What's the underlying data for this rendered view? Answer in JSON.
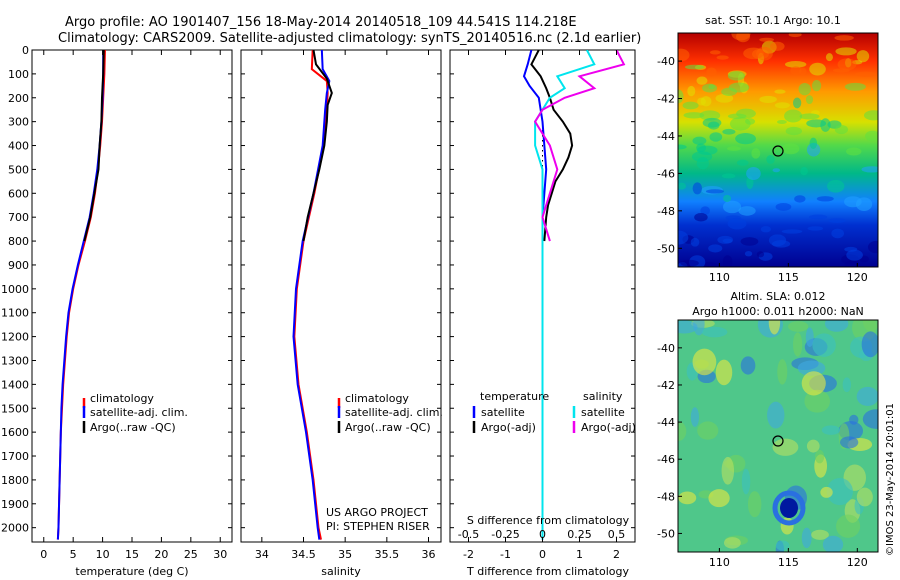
{
  "title": {
    "line1": "Argo profile: AO 1901407_156 18-May-2014 20140518_109 44.541S 114.218E",
    "line2": "Climatology: CARS2009. Satellite-adjusted climatology: synTS_20140516.nc (2.1d earlier)"
  },
  "vertical_stamp": "©IMOS 23-May-2014 20:01:01",
  "colors": {
    "climatology": "#ff0000",
    "satellite": "#0000ff",
    "argo": "#000000",
    "sal_satellite": "#00e5ee",
    "sal_argo": "#ee00ee"
  },
  "chart_data": [
    {
      "type": "line",
      "xlabel": "temperature (deg C)",
      "ylabel": "",
      "xlim": [
        -2,
        32
      ],
      "ylim": [
        2060,
        0
      ],
      "x_ticks": [
        "0",
        "5",
        "10",
        "15",
        "20",
        "25",
        "30"
      ],
      "y_ticks": [
        "0",
        "100",
        "200",
        "300",
        "400",
        "500",
        "600",
        "700",
        "800",
        "900",
        "1000",
        "1100",
        "1200",
        "1300",
        "1400",
        "1500",
        "1600",
        "1700",
        "1800",
        "1900",
        "2000"
      ],
      "legend": [
        "climatology",
        "satellite-adj. clim.",
        "Argo(..raw -QC)"
      ],
      "series": [
        {
          "name": "climatology",
          "depth": [
            0,
            100,
            200,
            300,
            400,
            500,
            600,
            700,
            800,
            900,
            1000,
            1100,
            1200,
            1300,
            1400,
            1500,
            1600,
            1700,
            1800,
            1900,
            2000,
            2050
          ],
          "values": [
            10.4,
            10.3,
            10.1,
            9.9,
            9.6,
            9.2,
            8.7,
            8.0,
            7.0,
            5.9,
            5.0,
            4.3,
            3.9,
            3.6,
            3.3,
            3.1,
            2.9,
            2.8,
            2.7,
            2.6,
            2.5,
            2.4
          ]
        },
        {
          "name": "satellite-adj. clim.",
          "depth": [
            0,
            100,
            200,
            300,
            400,
            500,
            600,
            700,
            800,
            900,
            1000,
            1100,
            1200,
            1300,
            1400,
            1500,
            1600,
            1700,
            1800,
            1900,
            2000,
            2050
          ],
          "values": [
            10.1,
            10.1,
            10.0,
            9.8,
            9.5,
            9.1,
            8.5,
            7.8,
            6.8,
            5.8,
            4.9,
            4.2,
            3.8,
            3.5,
            3.2,
            3.0,
            2.9,
            2.8,
            2.7,
            2.6,
            2.5,
            2.4
          ]
        },
        {
          "name": "Argo(..raw -QC)",
          "depth": [
            0,
            100,
            200,
            300,
            400,
            500,
            600,
            700,
            800
          ],
          "values": [
            10.2,
            10.1,
            9.9,
            9.8,
            9.5,
            9.3,
            8.6,
            7.9,
            6.9
          ]
        }
      ]
    },
    {
      "type": "line",
      "xlabel": "salinity",
      "xlim": [
        33.75,
        36.15
      ],
      "ylim": [
        2060,
        0
      ],
      "x_ticks": [
        "34",
        "34.5",
        "35",
        "35.5",
        "36"
      ],
      "legend": [
        "climatology",
        "satellite-adj. clim.",
        "Argo(..raw -QC)"
      ],
      "annotations": [
        "US ARGO PROJECT",
        "PI: STEPHEN RISER"
      ],
      "series": [
        {
          "name": "climatology",
          "depth": [
            0,
            80,
            130,
            180,
            250,
            400,
            600,
            800,
            1000,
            1200,
            1400,
            1600,
            1800,
            2000,
            2050
          ],
          "values": [
            34.61,
            34.6,
            34.78,
            34.79,
            34.78,
            34.74,
            34.63,
            34.5,
            34.42,
            34.39,
            34.44,
            34.54,
            34.62,
            34.68,
            34.71
          ]
        },
        {
          "name": "satellite-adj. clim.",
          "depth": [
            0,
            80,
            130,
            180,
            250,
            400,
            600,
            800,
            1000,
            1200,
            1400,
            1600,
            1800,
            2000,
            2050
          ],
          "values": [
            34.72,
            34.73,
            34.81,
            34.78,
            34.76,
            34.73,
            34.62,
            34.49,
            34.41,
            34.38,
            34.43,
            34.53,
            34.61,
            34.67,
            34.69
          ]
        },
        {
          "name": "Argo(..raw -QC)",
          "depth": [
            0,
            60,
            120,
            180,
            230,
            300,
            400,
            500,
            600,
            700,
            800
          ],
          "values": [
            34.62,
            34.65,
            34.78,
            34.84,
            34.79,
            34.78,
            34.75,
            34.69,
            34.62,
            34.55,
            34.5
          ]
        }
      ]
    },
    {
      "type": "line",
      "xlabel": "T difference from climatology",
      "xlabel2": "S difference from climatology",
      "xlim": [
        -2.5,
        2.5
      ],
      "ylim": [
        2060,
        0
      ],
      "x_ticks": [
        "-2",
        "-1",
        "0",
        "1",
        "2"
      ],
      "x_ticks_top": [
        "-0.5",
        "-0.25",
        "0",
        "0.25",
        "0.5"
      ],
      "legend_headers": [
        "temperature",
        "salinity"
      ],
      "legend": [
        "satellite",
        "Argo(-adj)",
        "satellite",
        "Argo(-adj)"
      ],
      "series": [
        {
          "name": "satellite",
          "depth": [
            0,
            60,
            110,
            150,
            200,
            300,
            400,
            500,
            600,
            700,
            800,
            1000,
            1200,
            1400,
            1600,
            1800,
            2000,
            2050
          ],
          "values": [
            -0.3,
            -0.4,
            -0.5,
            -0.35,
            -0.1,
            0.0,
            0.05,
            0.1,
            0.05,
            0.0,
            0.0,
            0.0,
            0.0,
            0.0,
            0.0,
            0.0,
            0.0,
            0.0
          ]
        },
        {
          "name": "Argo(-adj)",
          "depth": [
            0,
            60,
            110,
            160,
            200,
            250,
            300,
            350,
            400,
            450,
            500,
            550,
            600,
            650,
            700,
            800
          ],
          "values": [
            -0.1,
            -0.3,
            -0.05,
            0.1,
            0.2,
            0.3,
            0.55,
            0.75,
            0.8,
            0.7,
            0.55,
            0.35,
            0.25,
            0.15,
            0.1,
            0.05
          ]
        },
        {
          "name": "satellite",
          "depth": [
            0,
            60,
            110,
            160,
            200,
            300,
            400,
            500,
            600,
            800,
            1000,
            1200,
            1400,
            1600,
            1800,
            2000,
            2050
          ],
          "values": [
            0.3,
            0.35,
            0.1,
            0.15,
            0.05,
            -0.05,
            -0.05,
            0.0,
            0.0,
            0.0,
            0.0,
            0.0,
            0.0,
            0.0,
            0.0,
            0.0,
            0.0
          ]
        },
        {
          "name": "Argo(-adj)",
          "depth": [
            0,
            60,
            110,
            160,
            200,
            250,
            300,
            350,
            400,
            500,
            600,
            700,
            800
          ],
          "values": [
            0.5,
            0.55,
            0.25,
            0.35,
            0.15,
            0.0,
            -0.05,
            0.0,
            0.05,
            0.1,
            0.05,
            0.0,
            0.05
          ]
        }
      ]
    },
    {
      "type": "heatmap",
      "title": "sat. SST: 10.1  Argo: 10.1",
      "xlim": [
        107,
        121.5
      ],
      "ylim": [
        -51,
        -38.5
      ],
      "x_ticks": [
        "110",
        "115",
        "120"
      ],
      "y_ticks": [
        "-40",
        "-42",
        "-44",
        "-46",
        "-48",
        "-50"
      ],
      "marker": {
        "lon": 114.2,
        "lat": -44.5
      }
    },
    {
      "type": "heatmap",
      "title": "Altim. SLA: 0.012",
      "subtitle": "Argo h1000: 0.011  h2000: NaN",
      "xlim": [
        107,
        121.5
      ],
      "ylim": [
        -51,
        -38.5
      ],
      "x_ticks": [
        "110",
        "115",
        "120"
      ],
      "y_ticks": [
        "-40",
        "-42",
        "-44",
        "-46",
        "-48",
        "-50"
      ],
      "marker": {
        "lon": 114.2,
        "lat": -44.5
      }
    }
  ]
}
